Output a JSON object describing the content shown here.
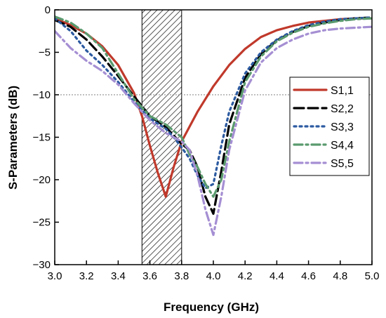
{
  "chart_data": {
    "type": "line",
    "title": "",
    "xlabel": "Frequency (GHz)",
    "ylabel": "S-Parameters (dB)",
    "xlim": [
      3.0,
      5.0
    ],
    "ylim": [
      -30,
      0
    ],
    "x_ticks": [
      3.0,
      3.2,
      3.4,
      3.6,
      3.8,
      4.0,
      4.2,
      4.4,
      4.6,
      4.8,
      5.0
    ],
    "x_tick_labels": [
      "3.0",
      "3.2",
      "3.4",
      "3.6",
      "3.8",
      "4.0",
      "4.2",
      "4.4",
      "4.6",
      "4.8",
      "5.0"
    ],
    "y_ticks": [
      0,
      -5,
      -10,
      -15,
      -20,
      -25,
      -30
    ],
    "y_tick_labels": [
      "0",
      "−5",
      "−10",
      "−15",
      "−20",
      "−25",
      "−30"
    ],
    "grid": false,
    "legend_position": "right",
    "reference_line": {
      "y": -10,
      "style": "dotted",
      "color": "#808080"
    },
    "shaded_band": {
      "x_start": 3.55,
      "x_end": 3.8,
      "pattern": "diagonal-hatch"
    },
    "series": [
      {
        "name": "S1,1",
        "color": "#c0392b",
        "dash": "solid",
        "x": [
          3.0,
          3.1,
          3.2,
          3.3,
          3.4,
          3.5,
          3.55,
          3.6,
          3.65,
          3.7,
          3.75,
          3.8,
          3.9,
          4.0,
          4.1,
          4.2,
          4.3,
          4.4,
          4.5,
          4.6,
          4.7,
          4.8,
          4.9,
          5.0
        ],
        "y": [
          -1.0,
          -1.8,
          -2.8,
          -4.3,
          -6.5,
          -9.8,
          -12.5,
          -16.0,
          -19.2,
          -22.0,
          -18.5,
          -15.5,
          -12.0,
          -9.0,
          -6.5,
          -4.6,
          -3.2,
          -2.4,
          -1.9,
          -1.5,
          -1.3,
          -1.1,
          -1.0,
          -1.0
        ]
      },
      {
        "name": "S2,2",
        "color": "#000000",
        "dash": "long-dash",
        "x": [
          3.0,
          3.1,
          3.2,
          3.3,
          3.4,
          3.5,
          3.6,
          3.7,
          3.75,
          3.8,
          3.85,
          3.9,
          3.95,
          4.0,
          4.05,
          4.1,
          4.2,
          4.3,
          4.4,
          4.5,
          4.6,
          4.7,
          4.8,
          4.9,
          5.0
        ],
        "y": [
          -1.2,
          -2.0,
          -3.5,
          -5.5,
          -7.8,
          -10.2,
          -12.5,
          -13.8,
          -14.8,
          -15.8,
          -16.5,
          -18.5,
          -22.0,
          -24.0,
          -19.0,
          -13.5,
          -8.0,
          -5.2,
          -3.6,
          -2.6,
          -1.9,
          -1.5,
          -1.2,
          -1.0,
          -0.9
        ]
      },
      {
        "name": "S3,3",
        "color": "#2c5aa0",
        "dash": "dotted",
        "x": [
          3.0,
          3.1,
          3.2,
          3.3,
          3.4,
          3.5,
          3.6,
          3.7,
          3.75,
          3.8,
          3.85,
          3.9,
          3.95,
          4.0,
          4.05,
          4.1,
          4.2,
          4.3,
          4.4,
          4.5,
          4.6,
          4.7,
          4.8,
          4.9,
          5.0
        ],
        "y": [
          -1.0,
          -2.5,
          -4.8,
          -6.5,
          -8.5,
          -10.8,
          -12.8,
          -14.0,
          -15.0,
          -16.2,
          -17.5,
          -19.5,
          -21.0,
          -20.5,
          -16.0,
          -12.0,
          -7.5,
          -5.0,
          -3.5,
          -2.5,
          -1.8,
          -1.4,
          -1.1,
          -1.0,
          -0.9
        ]
      },
      {
        "name": "S4,4",
        "color": "#5a9a6e",
        "dash": "dash-dot",
        "x": [
          3.0,
          3.1,
          3.2,
          3.3,
          3.4,
          3.5,
          3.6,
          3.7,
          3.8,
          3.85,
          3.9,
          3.95,
          4.0,
          4.05,
          4.1,
          4.2,
          4.3,
          4.4,
          4.5,
          4.6,
          4.7,
          4.8,
          4.9,
          5.0
        ],
        "y": [
          -0.8,
          -1.5,
          -2.8,
          -4.5,
          -7.5,
          -10.5,
          -12.5,
          -13.5,
          -15.0,
          -17.0,
          -18.5,
          -20.5,
          -22.0,
          -20.0,
          -15.5,
          -8.5,
          -5.5,
          -3.7,
          -2.7,
          -2.0,
          -1.6,
          -1.3,
          -1.1,
          -1.0
        ]
      },
      {
        "name": "S5,5",
        "color": "#a58fd3",
        "dash": "dash-dot",
        "x": [
          3.0,
          3.1,
          3.2,
          3.3,
          3.4,
          3.5,
          3.6,
          3.7,
          3.8,
          3.85,
          3.9,
          3.95,
          4.0,
          4.05,
          4.1,
          4.2,
          4.3,
          4.4,
          4.5,
          4.6,
          4.7,
          4.8,
          4.9,
          5.0
        ],
        "y": [
          -2.5,
          -4.5,
          -6.0,
          -7.2,
          -8.8,
          -11.0,
          -13.0,
          -14.5,
          -15.5,
          -16.5,
          -19.5,
          -23.5,
          -26.5,
          -22.0,
          -16.5,
          -9.5,
          -6.2,
          -4.5,
          -3.5,
          -2.8,
          -2.4,
          -2.2,
          -2.1,
          -2.0
        ]
      }
    ]
  }
}
